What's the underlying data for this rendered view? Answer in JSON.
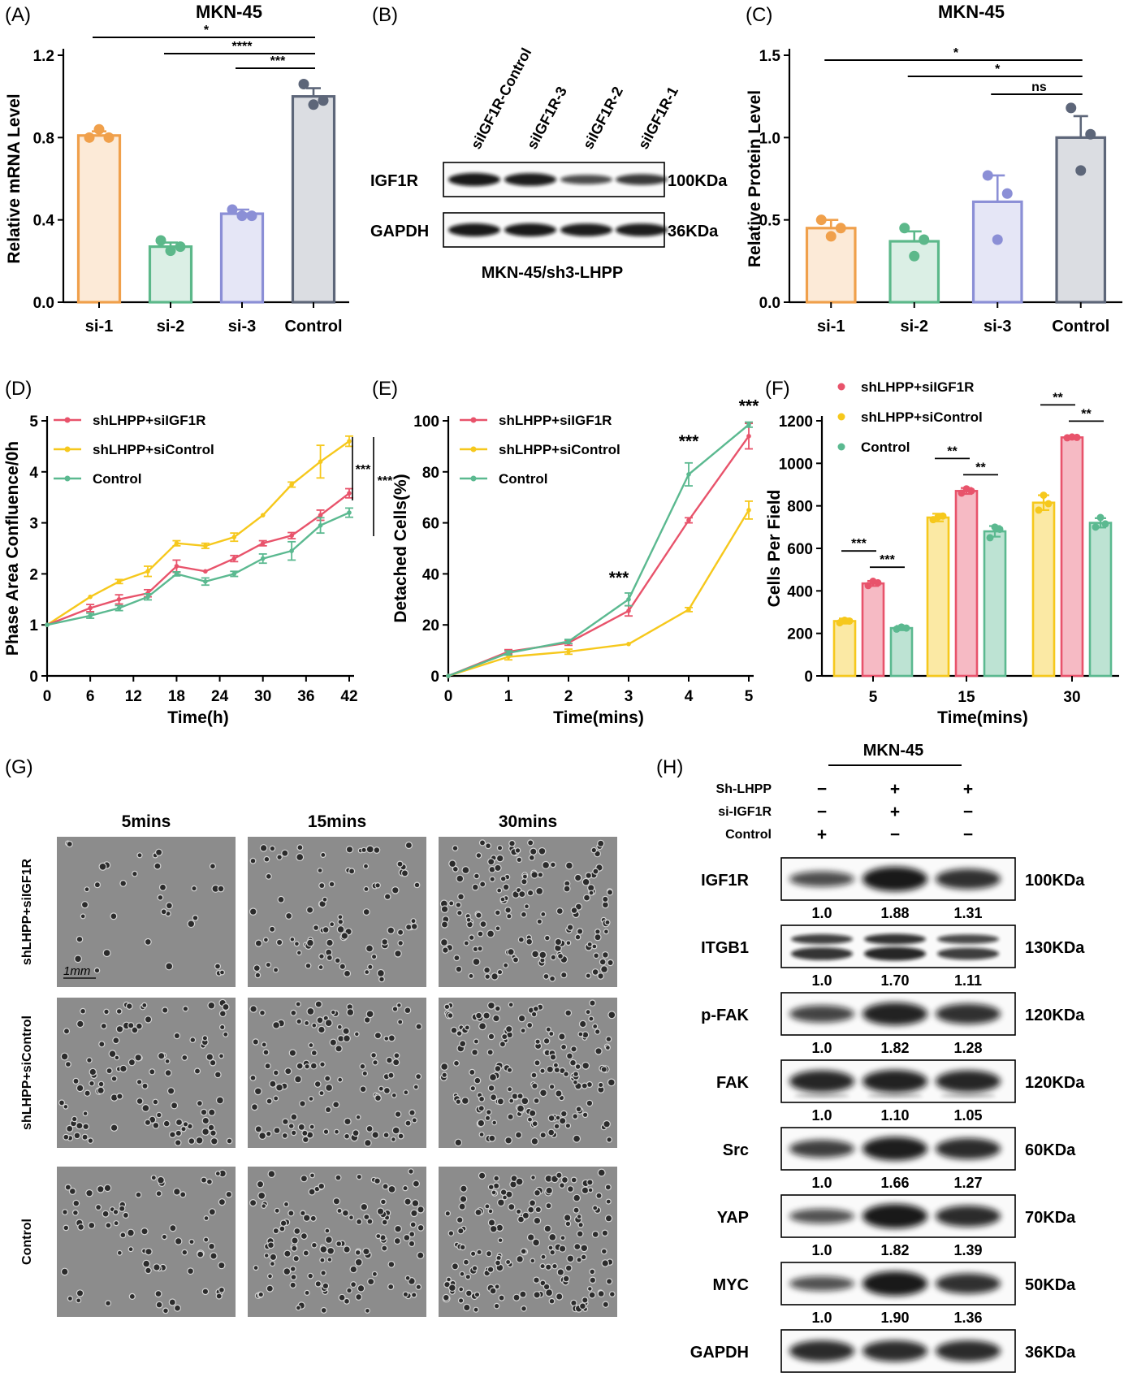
{
  "panels": [
    {
      "id": "A",
      "label": "(A)"
    },
    {
      "id": "B",
      "label": "(B)"
    },
    {
      "id": "C",
      "label": "(C)"
    },
    {
      "id": "D",
      "label": "(D)"
    },
    {
      "id": "E",
      "label": "(E)"
    },
    {
      "id": "F",
      "label": "(F)"
    },
    {
      "id": "G",
      "label": "(G)"
    },
    {
      "id": "H",
      "label": "(H)"
    }
  ],
  "colors": {
    "orange": "#f0a04b",
    "green": "#5cb88a",
    "purple": "#8b8fd6",
    "slate": "#5d6679",
    "red": "#e8536b",
    "yellow": "#f6c81c",
    "teal": "#5bb990"
  },
  "chart_data": [
    {
      "panel": "A",
      "type": "bar",
      "title": "MKN-45",
      "ylabel": "Relative mRNA Level",
      "categories": [
        "si-1",
        "si-2",
        "si-3",
        "Control"
      ],
      "values": [
        0.81,
        0.27,
        0.43,
        1.0
      ],
      "errors": [
        0.02,
        0.02,
        0.02,
        0.04
      ],
      "points": [
        [
          0.8,
          0.84,
          0.8
        ],
        [
          0.3,
          0.25,
          0.27
        ],
        [
          0.45,
          0.42,
          0.42
        ],
        [
          1.06,
          0.96,
          0.98
        ]
      ],
      "ylim": [
        0,
        1.2
      ],
      "yticks": [
        "0.0",
        "0.4",
        "0.8",
        "1.2"
      ],
      "significance": [
        {
          "from": 0,
          "to": 3,
          "label": "*"
        },
        {
          "from": 1,
          "to": 3,
          "label": "****"
        },
        {
          "from": 2,
          "to": 3,
          "label": "***"
        }
      ]
    },
    {
      "panel": "C",
      "type": "bar",
      "title": "MKN-45",
      "ylabel": "Relative Protein Level",
      "categories": [
        "si-1",
        "si-2",
        "si-3",
        "Control"
      ],
      "values": [
        0.45,
        0.37,
        0.61,
        1.0
      ],
      "errors": [
        0.05,
        0.06,
        0.16,
        0.13
      ],
      "points": [
        [
          0.5,
          0.4,
          0.45
        ],
        [
          0.45,
          0.28,
          0.38
        ],
        [
          0.77,
          0.38,
          0.66
        ],
        [
          1.18,
          0.8,
          1.02
        ]
      ],
      "ylim": [
        0,
        1.5
      ],
      "yticks": [
        "0.0",
        "0.5",
        "1.0",
        "1.5"
      ],
      "significance": [
        {
          "from": 0,
          "to": 3,
          "label": "*"
        },
        {
          "from": 1,
          "to": 3,
          "label": "*"
        },
        {
          "from": 2,
          "to": 3,
          "label": "ns"
        }
      ]
    },
    {
      "panel": "D",
      "type": "line",
      "xlabel": "Time(h)",
      "ylabel": "Phase Area Confluence/0h",
      "x": [
        0,
        6,
        10,
        14,
        18,
        22,
        26,
        30,
        34,
        38,
        42
      ],
      "xticks": [
        "0",
        "6",
        "12",
        "18",
        "24",
        "30",
        "36",
        "42"
      ],
      "ylim": [
        0,
        5
      ],
      "yticks": [
        "0",
        "1",
        "2",
        "3",
        "4",
        "5"
      ],
      "series": [
        {
          "name": "shLHPP+siIGF1R",
          "values": [
            1.0,
            1.33,
            1.5,
            1.62,
            2.15,
            2.05,
            2.3,
            2.6,
            2.75,
            3.15,
            3.58
          ]
        },
        {
          "name": "shLHPP+siControl",
          "values": [
            1.0,
            1.55,
            1.85,
            2.05,
            2.6,
            2.55,
            2.72,
            3.15,
            3.75,
            4.2,
            4.6
          ]
        },
        {
          "name": "Control",
          "values": [
            1.0,
            1.18,
            1.33,
            1.55,
            2.0,
            1.85,
            2.0,
            2.3,
            2.45,
            2.95,
            3.2
          ]
        }
      ],
      "annotations": [
        "***",
        "***"
      ]
    },
    {
      "panel": "E",
      "type": "line",
      "xlabel": "Time(mins)",
      "ylabel": "Detached Cells(%)",
      "x": [
        0,
        1,
        2,
        3,
        4,
        5
      ],
      "xticks": [
        "0",
        "1",
        "2",
        "3",
        "4",
        "5"
      ],
      "ylim": [
        0,
        100
      ],
      "yticks": [
        "0",
        "20",
        "40",
        "60",
        "80",
        "100"
      ],
      "series": [
        {
          "name": "shLHPP+siIGF1R",
          "values": [
            0,
            9.5,
            13,
            25.5,
            61,
            94
          ]
        },
        {
          "name": "shLHPP+siControl",
          "values": [
            0,
            7.5,
            9.5,
            12.5,
            26,
            65
          ]
        },
        {
          "name": "Control",
          "values": [
            0,
            9,
            13.5,
            30,
            79,
            98.5
          ]
        }
      ],
      "annotations": [
        {
          "x": 3,
          "label": "***"
        },
        {
          "x": 4,
          "label": "***"
        },
        {
          "x": 5,
          "label": "***"
        }
      ]
    },
    {
      "panel": "F",
      "type": "bar",
      "xlabel": "Time(mins)",
      "ylabel": "Cells Per Field",
      "categories": [
        "5",
        "15",
        "30"
      ],
      "ylim": [
        0,
        1200
      ],
      "yticks": [
        "0",
        "200",
        "400",
        "600",
        "800",
        "1000",
        "1200"
      ],
      "series": [
        {
          "name": "shLHPP+siControl",
          "values": [
            258,
            745,
            815
          ],
          "errors": [
            12,
            18,
            35
          ]
        },
        {
          "name": "shLHPP+siIGF1R",
          "values": [
            435,
            870,
            1122
          ],
          "errors": [
            12,
            14,
            4
          ]
        },
        {
          "name": "Control",
          "values": [
            225,
            680,
            720
          ],
          "errors": [
            10,
            25,
            22
          ]
        }
      ],
      "legend": [
        "shLHPP+siIGF1R",
        "shLHPP+siControl",
        "Control"
      ],
      "significance": [
        {
          "group": 0,
          "pair": [
            0,
            1
          ],
          "label": "***"
        },
        {
          "group": 0,
          "pair": [
            1,
            2
          ],
          "label": "***"
        },
        {
          "group": 1,
          "pair": [
            0,
            1
          ],
          "label": "**"
        },
        {
          "group": 1,
          "pair": [
            1,
            2
          ],
          "label": "**"
        },
        {
          "group": 2,
          "pair": [
            0,
            1
          ],
          "label": "**"
        },
        {
          "group": 2,
          "pair": [
            1,
            2
          ],
          "label": "**"
        }
      ]
    }
  ],
  "blotB": {
    "lanes": [
      "siIGF1R-Control",
      "siIGF1R-3",
      "siIGF1R-2",
      "siIGF1R-1"
    ],
    "rows": [
      {
        "name": "IGF1R",
        "kda": "100KDa"
      },
      {
        "name": "GAPDH",
        "kda": "36KDa"
      }
    ],
    "intensities": [
      [
        1.0,
        0.95,
        0.45,
        0.65
      ],
      [
        1.0,
        1.0,
        0.95,
        0.95
      ]
    ],
    "caption": "MKN-45/sh3-LHPP"
  },
  "imagesG": {
    "columns": [
      "5mins",
      "15mins",
      "30mins"
    ],
    "rows": [
      "shLHPP+siIGF1R",
      "shLHPP+siControl",
      "Control"
    ],
    "scale": "1mm"
  },
  "blotH": {
    "title": "MKN-45",
    "conditions": [
      {
        "name": "Sh-LHPP",
        "signs": [
          "−",
          "+",
          "+"
        ]
      },
      {
        "name": "si-IGF1R",
        "signs": [
          "−",
          "+",
          "−"
        ]
      },
      {
        "name": "Control",
        "signs": [
          "+",
          "−",
          "−"
        ]
      }
    ],
    "rows": [
      {
        "name": "IGF1R",
        "kda": "100KDa",
        "values": [
          "1.0",
          "1.88",
          "1.31"
        ]
      },
      {
        "name": "ITGB1",
        "kda": "130KDa",
        "values": [
          "1.0",
          "1.70",
          "1.11"
        ]
      },
      {
        "name": "p-FAK",
        "kda": "120KDa",
        "values": [
          "1.0",
          "1.82",
          "1.28"
        ]
      },
      {
        "name": "FAK",
        "kda": "120KDa",
        "values": [
          "1.0",
          "1.10",
          "1.05"
        ]
      },
      {
        "name": "Src",
        "kda": "60KDa",
        "values": [
          "1.0",
          "1.66",
          "1.27"
        ]
      },
      {
        "name": "YAP",
        "kda": "70KDa",
        "values": [
          "1.0",
          "1.82",
          "1.39"
        ]
      },
      {
        "name": "MYC",
        "kda": "50KDa",
        "values": [
          "1.0",
          "1.90",
          "1.36"
        ]
      },
      {
        "name": "GAPDH",
        "kda": "36KDa",
        "values": []
      }
    ]
  }
}
